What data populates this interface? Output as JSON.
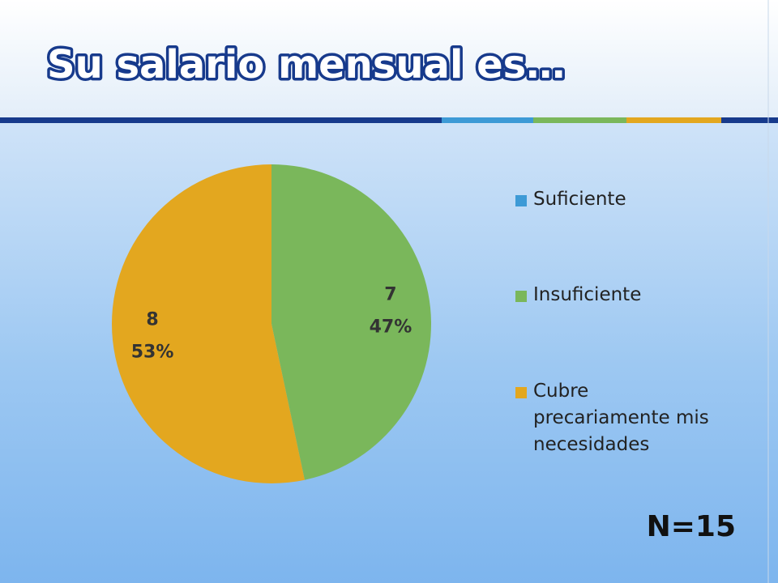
{
  "chart_data": {
    "type": "pie",
    "title": "Su salario mensual es…",
    "categories": [
      "Suficiente",
      "Insuficiente",
      "Cubre precariamente mis necesidades"
    ],
    "values": [
      0,
      7,
      8
    ],
    "value_labels": [
      null,
      "7",
      "8"
    ],
    "percent_labels": [
      null,
      "47%",
      "53%"
    ],
    "colors": [
      "#3d9ad6",
      "#7ab75b",
      "#e3a71f"
    ],
    "legend": "right",
    "annotation": "N=15"
  }
}
